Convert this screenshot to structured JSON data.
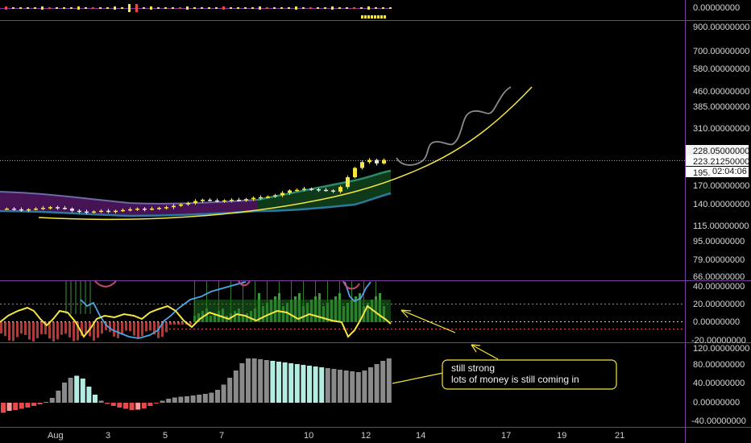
{
  "price_axis": {
    "pane0": [
      "0.00000000"
    ],
    "main": [
      "900.00000000",
      "700.00000000",
      "580.00000000",
      "460.00000000",
      "385.00000000",
      "310.00000000",
      "170.00000000",
      "140.00000000",
      "115.00000000",
      "95.00000000",
      "79.00000000",
      "66.00000000"
    ],
    "osc": [
      "40.00000000",
      "20.00000000",
      "0.00000000",
      "-20.00000000"
    ],
    "hist": [
      "120.00000000",
      "80.00000000",
      "40.00000000",
      "0.00000000",
      "-40.00000000"
    ]
  },
  "price_tags": {
    "high": "228.05000000",
    "last": "223.21250000",
    "low": "195.",
    "countdown": "02:04:06"
  },
  "time_axis": [
    "Aug",
    "3",
    "5",
    "7",
    "10",
    "12",
    "14",
    "17",
    "19",
    "21"
  ],
  "annotation": {
    "line1": "still strong",
    "line2": "lots of money is still coming in"
  },
  "colors": {
    "background": "#000000",
    "pane_separator": "#7a3e9e",
    "bull_candle": "#f5e642",
    "bear_candle": "#e6e6e6",
    "curve": "#f5e642",
    "ribbon_purple": "#4a1458",
    "ribbon_green": "#0f3d1a",
    "osc_line": "#f5e642",
    "hist_gray": "#8a8a8a",
    "hist_cyan": "#b3ece0",
    "hist_red": "#e84a4a"
  },
  "chart_data": [
    {
      "type": "candlestick",
      "pane": "price",
      "scale": "log",
      "x_labels": [
        "Aug",
        "3",
        "5",
        "7",
        "10",
        "12",
        "14",
        "17",
        "19",
        "21"
      ],
      "last_price": 223.2125,
      "session_high": 228.05,
      "session_low": 195,
      "approx_closes": [
        134,
        133,
        132,
        133,
        134,
        135,
        136,
        135,
        134,
        131,
        130,
        129,
        130,
        131,
        130,
        131,
        132,
        133,
        134,
        133,
        134,
        135,
        136,
        138,
        140,
        142,
        145,
        147,
        146,
        145,
        146,
        147,
        146,
        148,
        150,
        151,
        152,
        154,
        158,
        162,
        163,
        165,
        164,
        163,
        162,
        160,
        168,
        186,
        205,
        218,
        223,
        215,
        223
      ]
    },
    {
      "type": "histogram",
      "pane": "momentum",
      "ylim": [
        -40,
        120
      ],
      "approx_values": [
        -25,
        -20,
        -18,
        -15,
        -12,
        -8,
        -4,
        2,
        12,
        30,
        50,
        62,
        67,
        60,
        40,
        20,
        5,
        -3,
        -8,
        -12,
        -15,
        -18,
        -17,
        -14,
        -8,
        -2,
        5,
        10,
        13,
        15,
        16,
        18,
        20,
        22,
        25,
        32,
        45,
        62,
        80,
        98,
        110,
        110,
        108,
        106,
        104,
        102,
        100,
        98,
        96,
        94,
        92,
        90,
        88,
        86,
        84,
        82,
        80,
        78,
        76,
        80,
        88,
        96,
        104,
        110
      ]
    }
  ]
}
